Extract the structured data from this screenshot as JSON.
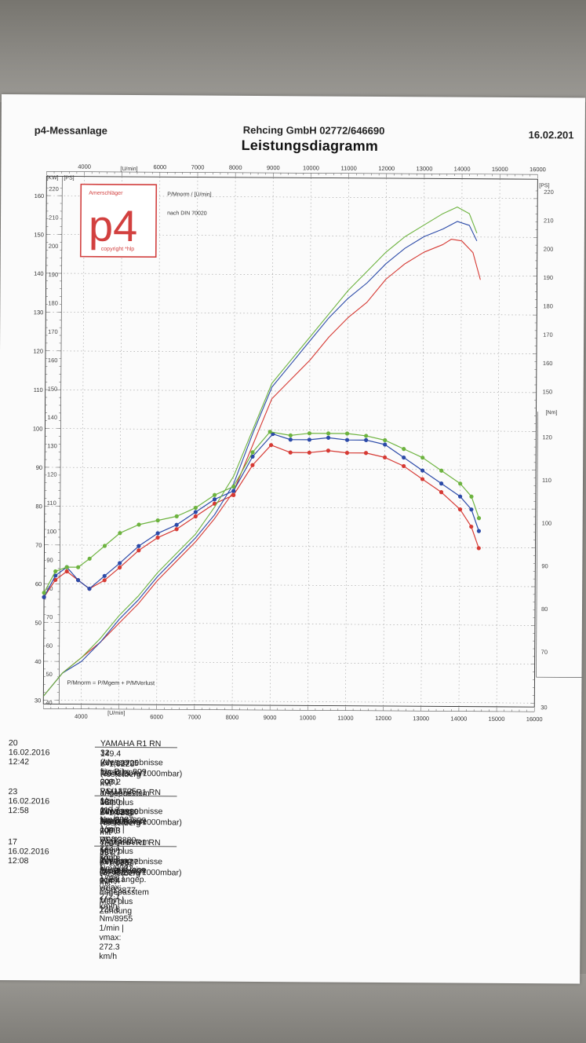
{
  "header": {
    "left": "p4-Messanlage",
    "center": "Rehcing GmbH 02772/646690",
    "title": "Leistungsdiagramm",
    "date": "16.02.201"
  },
  "logo": {
    "top_text": "Amerschläger",
    "big_text": "p4",
    "bottom_text": "copyright *hlp",
    "color": "#d2403f"
  },
  "chart_labels": {
    "kw_unit": "[KW]",
    "ps_unit_left": "[PS]",
    "ps_unit_right": "[PS]",
    "nm_unit": "[Nm]",
    "rpm_unit_top": "[U/min]",
    "rpm_unit_bottom": "[U/min]",
    "legend_top": "P/Mnorm / [U/min]",
    "norm_text": "nach DIN 70020",
    "formula": "P/Mnorm = P/Mgem + P/MVerlust"
  },
  "chart_data": {
    "type": "line",
    "x_ticks_top": [
      "4000",
      "6000",
      "7000",
      "8000",
      "9000",
      "10000",
      "11000",
      "12000",
      "13000",
      "14000",
      "15000",
      "16000"
    ],
    "x_ticks_bottom": [
      "4000",
      "6000",
      "7000",
      "8000",
      "9000",
      "10000",
      "11000",
      "12000",
      "13000",
      "14000",
      "15000",
      "16000"
    ],
    "kw_ticks": [
      "30",
      "40",
      "50",
      "60",
      "70",
      "80",
      "90",
      "100",
      "110",
      "120",
      "130",
      "140",
      "150",
      "160"
    ],
    "ps_left_ticks": [
      "30",
      "40",
      "50",
      "60",
      "70",
      "80",
      "90",
      "100",
      "110",
      "120",
      "130",
      "140",
      "150",
      "160",
      "170",
      "180",
      "190",
      "200",
      "210",
      "220"
    ],
    "ps_right_ticks": [
      "150",
      "160",
      "170",
      "180",
      "190",
      "200",
      "210",
      "220"
    ],
    "nm_ticks": [
      "30",
      "70",
      "80",
      "90",
      "100",
      "110",
      "120",
      "130",
      "140",
      "150",
      "160"
    ],
    "xlim": [
      3000,
      16000
    ],
    "kw_ylim": [
      29,
      165
    ],
    "nm_ylim": [
      57.1,
      180
    ],
    "grid": true,
    "series": [
      {
        "color": "#d63a34",
        "power_kw": [
          [
            3000,
            31
          ],
          [
            3500,
            37
          ],
          [
            4000,
            41
          ],
          [
            4500,
            45
          ],
          [
            5000,
            50
          ],
          [
            5500,
            55
          ],
          [
            6000,
            61
          ],
          [
            6500,
            66
          ],
          [
            7000,
            71
          ],
          [
            7500,
            77
          ],
          [
            8000,
            84
          ],
          [
            8500,
            96
          ],
          [
            9000,
            108
          ],
          [
            9500,
            113
          ],
          [
            10000,
            118
          ],
          [
            10500,
            124
          ],
          [
            11000,
            129
          ],
          [
            11500,
            133
          ],
          [
            12000,
            139
          ],
          [
            12500,
            143
          ],
          [
            13000,
            146
          ],
          [
            13500,
            148
          ],
          [
            13725,
            149.4
          ],
          [
            14000,
            149
          ],
          [
            14300,
            146
          ],
          [
            14500,
            139
          ]
        ],
        "torque_nm": [
          [
            3000,
            82
          ],
          [
            3300,
            86
          ],
          [
            3600,
            88
          ],
          [
            3900,
            86
          ],
          [
            4200,
            84
          ],
          [
            4600,
            86
          ],
          [
            5000,
            89
          ],
          [
            5500,
            93
          ],
          [
            6000,
            96
          ],
          [
            6500,
            98
          ],
          [
            7000,
            101
          ],
          [
            7500,
            104
          ],
          [
            8000,
            106
          ],
          [
            8500,
            113
          ],
          [
            8987,
            117.7
          ],
          [
            9500,
            116
          ],
          [
            10000,
            116
          ],
          [
            10500,
            116.5
          ],
          [
            11000,
            116
          ],
          [
            11500,
            116
          ],
          [
            12000,
            115
          ],
          [
            12500,
            113
          ],
          [
            13000,
            110
          ],
          [
            13500,
            107
          ],
          [
            14000,
            103
          ],
          [
            14300,
            99
          ],
          [
            14500,
            94
          ]
        ]
      },
      {
        "color": "#2b4aa8",
        "power_kw": [
          [
            3000,
            31
          ],
          [
            3500,
            37
          ],
          [
            4000,
            40
          ],
          [
            4500,
            45
          ],
          [
            5000,
            51
          ],
          [
            5500,
            56
          ],
          [
            6000,
            62
          ],
          [
            6500,
            67
          ],
          [
            7000,
            72
          ],
          [
            7500,
            78
          ],
          [
            8000,
            86
          ],
          [
            8500,
            99
          ],
          [
            9000,
            111
          ],
          [
            9500,
            117
          ],
          [
            10000,
            123
          ],
          [
            10500,
            129
          ],
          [
            11000,
            134
          ],
          [
            11500,
            138
          ],
          [
            12000,
            143
          ],
          [
            12500,
            147
          ],
          [
            13000,
            150
          ],
          [
            13500,
            152
          ],
          [
            13880,
            154
          ],
          [
            14200,
            153
          ],
          [
            14400,
            149
          ]
        ],
        "torque_nm": [
          [
            3000,
            82
          ],
          [
            3300,
            87
          ],
          [
            3600,
            89
          ],
          [
            3900,
            86
          ],
          [
            4200,
            84
          ],
          [
            4600,
            87
          ],
          [
            5000,
            90
          ],
          [
            5500,
            94
          ],
          [
            6000,
            97
          ],
          [
            6500,
            99
          ],
          [
            7000,
            102
          ],
          [
            7500,
            105
          ],
          [
            8000,
            107
          ],
          [
            8500,
            115
          ],
          [
            9032,
            120.3
          ],
          [
            9500,
            119
          ],
          [
            10000,
            119
          ],
          [
            10500,
            119.5
          ],
          [
            11000,
            119
          ],
          [
            11500,
            119
          ],
          [
            12000,
            118
          ],
          [
            12500,
            115
          ],
          [
            13000,
            112
          ],
          [
            13500,
            109
          ],
          [
            14000,
            106
          ],
          [
            14300,
            103
          ],
          [
            14500,
            98
          ]
        ]
      },
      {
        "color": "#6db33f",
        "power_kw": [
          [
            3000,
            31
          ],
          [
            3500,
            37
          ],
          [
            4000,
            41
          ],
          [
            4500,
            46
          ],
          [
            5000,
            52
          ],
          [
            5500,
            57
          ],
          [
            6000,
            63
          ],
          [
            6500,
            68
          ],
          [
            7000,
            73
          ],
          [
            7500,
            80
          ],
          [
            8000,
            88
          ],
          [
            8500,
            100
          ],
          [
            9000,
            112
          ],
          [
            9500,
            118
          ],
          [
            10000,
            124
          ],
          [
            10500,
            130
          ],
          [
            11000,
            136
          ],
          [
            11500,
            141
          ],
          [
            12000,
            146
          ],
          [
            12500,
            150
          ],
          [
            13000,
            153
          ],
          [
            13500,
            156
          ],
          [
            13877,
            157.7
          ],
          [
            14200,
            156
          ],
          [
            14400,
            151
          ]
        ],
        "torque_nm": [
          [
            3000,
            83
          ],
          [
            3300,
            88
          ],
          [
            3600,
            89
          ],
          [
            3900,
            89
          ],
          [
            4200,
            91
          ],
          [
            4600,
            94
          ],
          [
            5000,
            97
          ],
          [
            5500,
            99
          ],
          [
            6000,
            100
          ],
          [
            6500,
            101
          ],
          [
            7000,
            103
          ],
          [
            7500,
            106
          ],
          [
            8000,
            108
          ],
          [
            8500,
            116
          ],
          [
            8955,
            120.8
          ],
          [
            9500,
            120
          ],
          [
            10000,
            120.5
          ],
          [
            10500,
            120.5
          ],
          [
            11000,
            120.5
          ],
          [
            11500,
            120
          ],
          [
            12000,
            119
          ],
          [
            12500,
            117
          ],
          [
            13000,
            115
          ],
          [
            13500,
            112
          ],
          [
            14000,
            109
          ],
          [
            14300,
            106
          ],
          [
            14500,
            101
          ]
        ]
      }
    ]
  },
  "runs": [
    {
      "num": "20",
      "stamp": "16.02.2016  12:42",
      "line1": "YAMAHA R1 RN 32 (Messergebnisse für: Bike 999 ccm)",
      "line2": "149.4 KW/13725 1/min  |  203.2 PS/13725 1/min  |  117.7 Nm/8987 1/min  |  vmax: 273.1 km/h",
      "line3": "k=1,022 (25°C/30%/1000mbar)",
      "line4": "Hesterberg mit angepasstem Map plus Zündung Auspuff leise"
    },
    {
      "num": "23",
      "stamp": "16.02.2016  12:58",
      "line1": "YAMAHA R1 RN 32 (Messergebnisse für: Bike 999 ccm)",
      "line2": "154.0 KW/13880 1/min  |  209.3 PS/13880 1/min  |  120.3 Nm/9032 1/min  |  vmax: 272.1 km/h",
      "line3": "k=1,023 (26°C/30%/1000mbar)",
      "line4": "Hesterberg mit angepasstem Map plus Zündung Auspuff leise o. Ea.angep."
    },
    {
      "num": "17",
      "stamp": "16.02.2016  12:08",
      "line1": "YAMAHA R1 RN 32 (Messergebnisse für: Bike 999 ccm)",
      "line2": "157.7 KW/13877 1/min  |  214.4 PS/13877 1/min  |  120.8 Nm/8955 1/min  |  vmax: 272.3 km/h",
      "line3": "k=1,025 (27°C/29%/1000mbar)",
      "line4": "Hesterberg mit angepasstem Map plus Zündung"
    }
  ]
}
